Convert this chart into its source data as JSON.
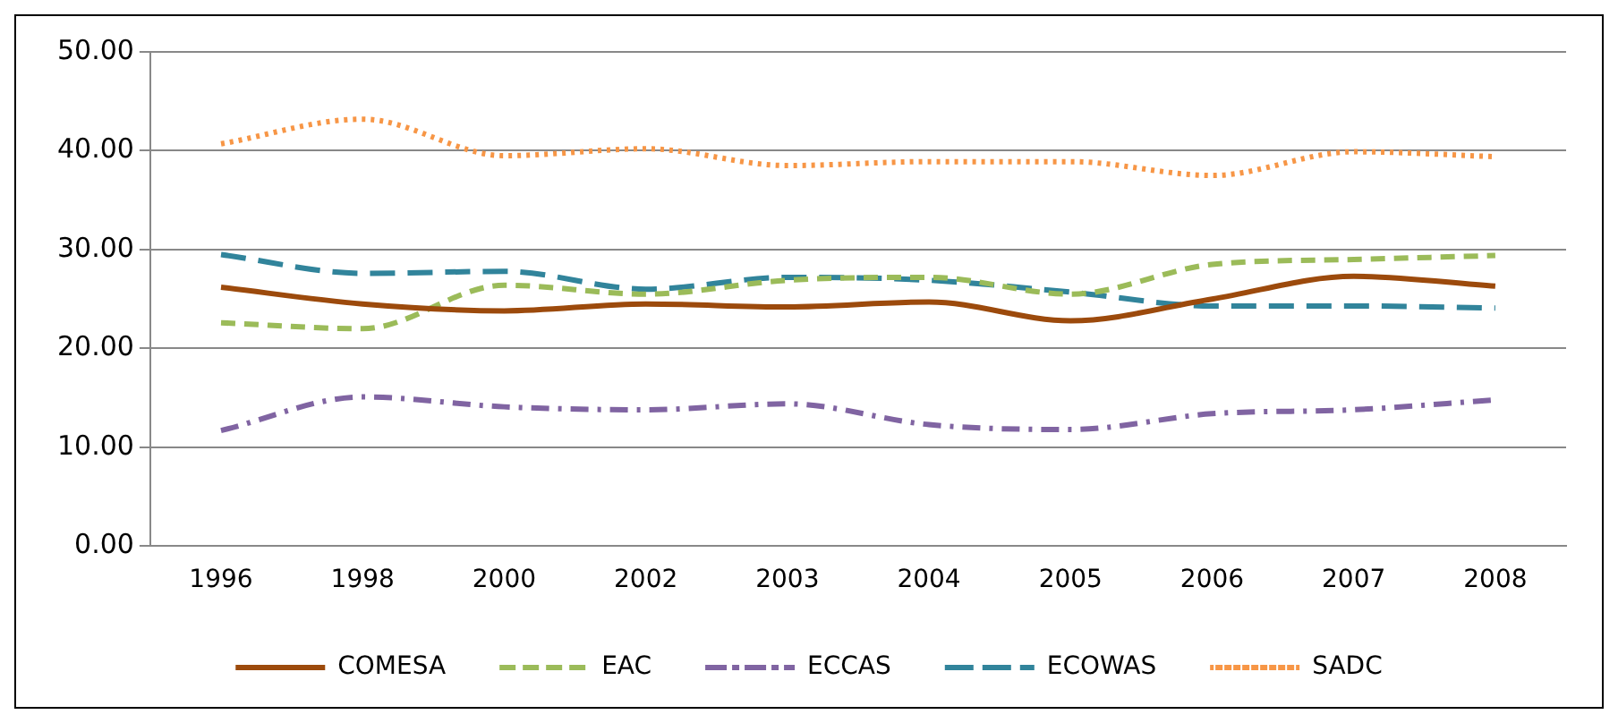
{
  "chart_data": {
    "type": "line",
    "categories": [
      "1996",
      "1998",
      "2000",
      "2002",
      "2003",
      "2004",
      "2005",
      "2006",
      "2007",
      "2008"
    ],
    "series": [
      {
        "name": "COMESA",
        "color": "#9c4a0c",
        "line_style": "solid",
        "values": [
          26.2,
          24.5,
          23.8,
          24.5,
          24.2,
          24.7,
          22.8,
          25.0,
          27.3,
          26.3
        ]
      },
      {
        "name": "EAC",
        "color": "#9bbb59",
        "line_style": "dashed",
        "values": [
          22.6,
          22.0,
          26.4,
          25.5,
          26.9,
          27.2,
          25.5,
          28.5,
          29.0,
          29.4
        ]
      },
      {
        "name": "ECCAS",
        "color": "#8064a2",
        "line_style": "dashdot",
        "values": [
          11.7,
          15.1,
          14.1,
          13.8,
          14.4,
          12.3,
          11.8,
          13.4,
          13.8,
          14.8
        ]
      },
      {
        "name": "ECOWAS",
        "color": "#31849b",
        "line_style": "longdash",
        "values": [
          29.5,
          27.6,
          27.8,
          26.0,
          27.2,
          26.9,
          25.7,
          24.3,
          24.3,
          24.1
        ]
      },
      {
        "name": "SADC",
        "color": "#f79646",
        "line_style": "dotted",
        "values": [
          40.7,
          43.2,
          39.5,
          40.2,
          38.5,
          38.9,
          38.9,
          37.5,
          39.9,
          39.4
        ]
      }
    ],
    "ylim": [
      0,
      50
    ],
    "yticks": [
      {
        "value": 0,
        "label": "0.00"
      },
      {
        "value": 10,
        "label": "10.00"
      },
      {
        "value": 20,
        "label": "20.00"
      },
      {
        "value": 30,
        "label": "30.00"
      },
      {
        "value": 40,
        "label": "40.00"
      },
      {
        "value": 50,
        "label": "50.00"
      }
    ],
    "grid": "y",
    "legend": "bottom",
    "marker": "none"
  }
}
